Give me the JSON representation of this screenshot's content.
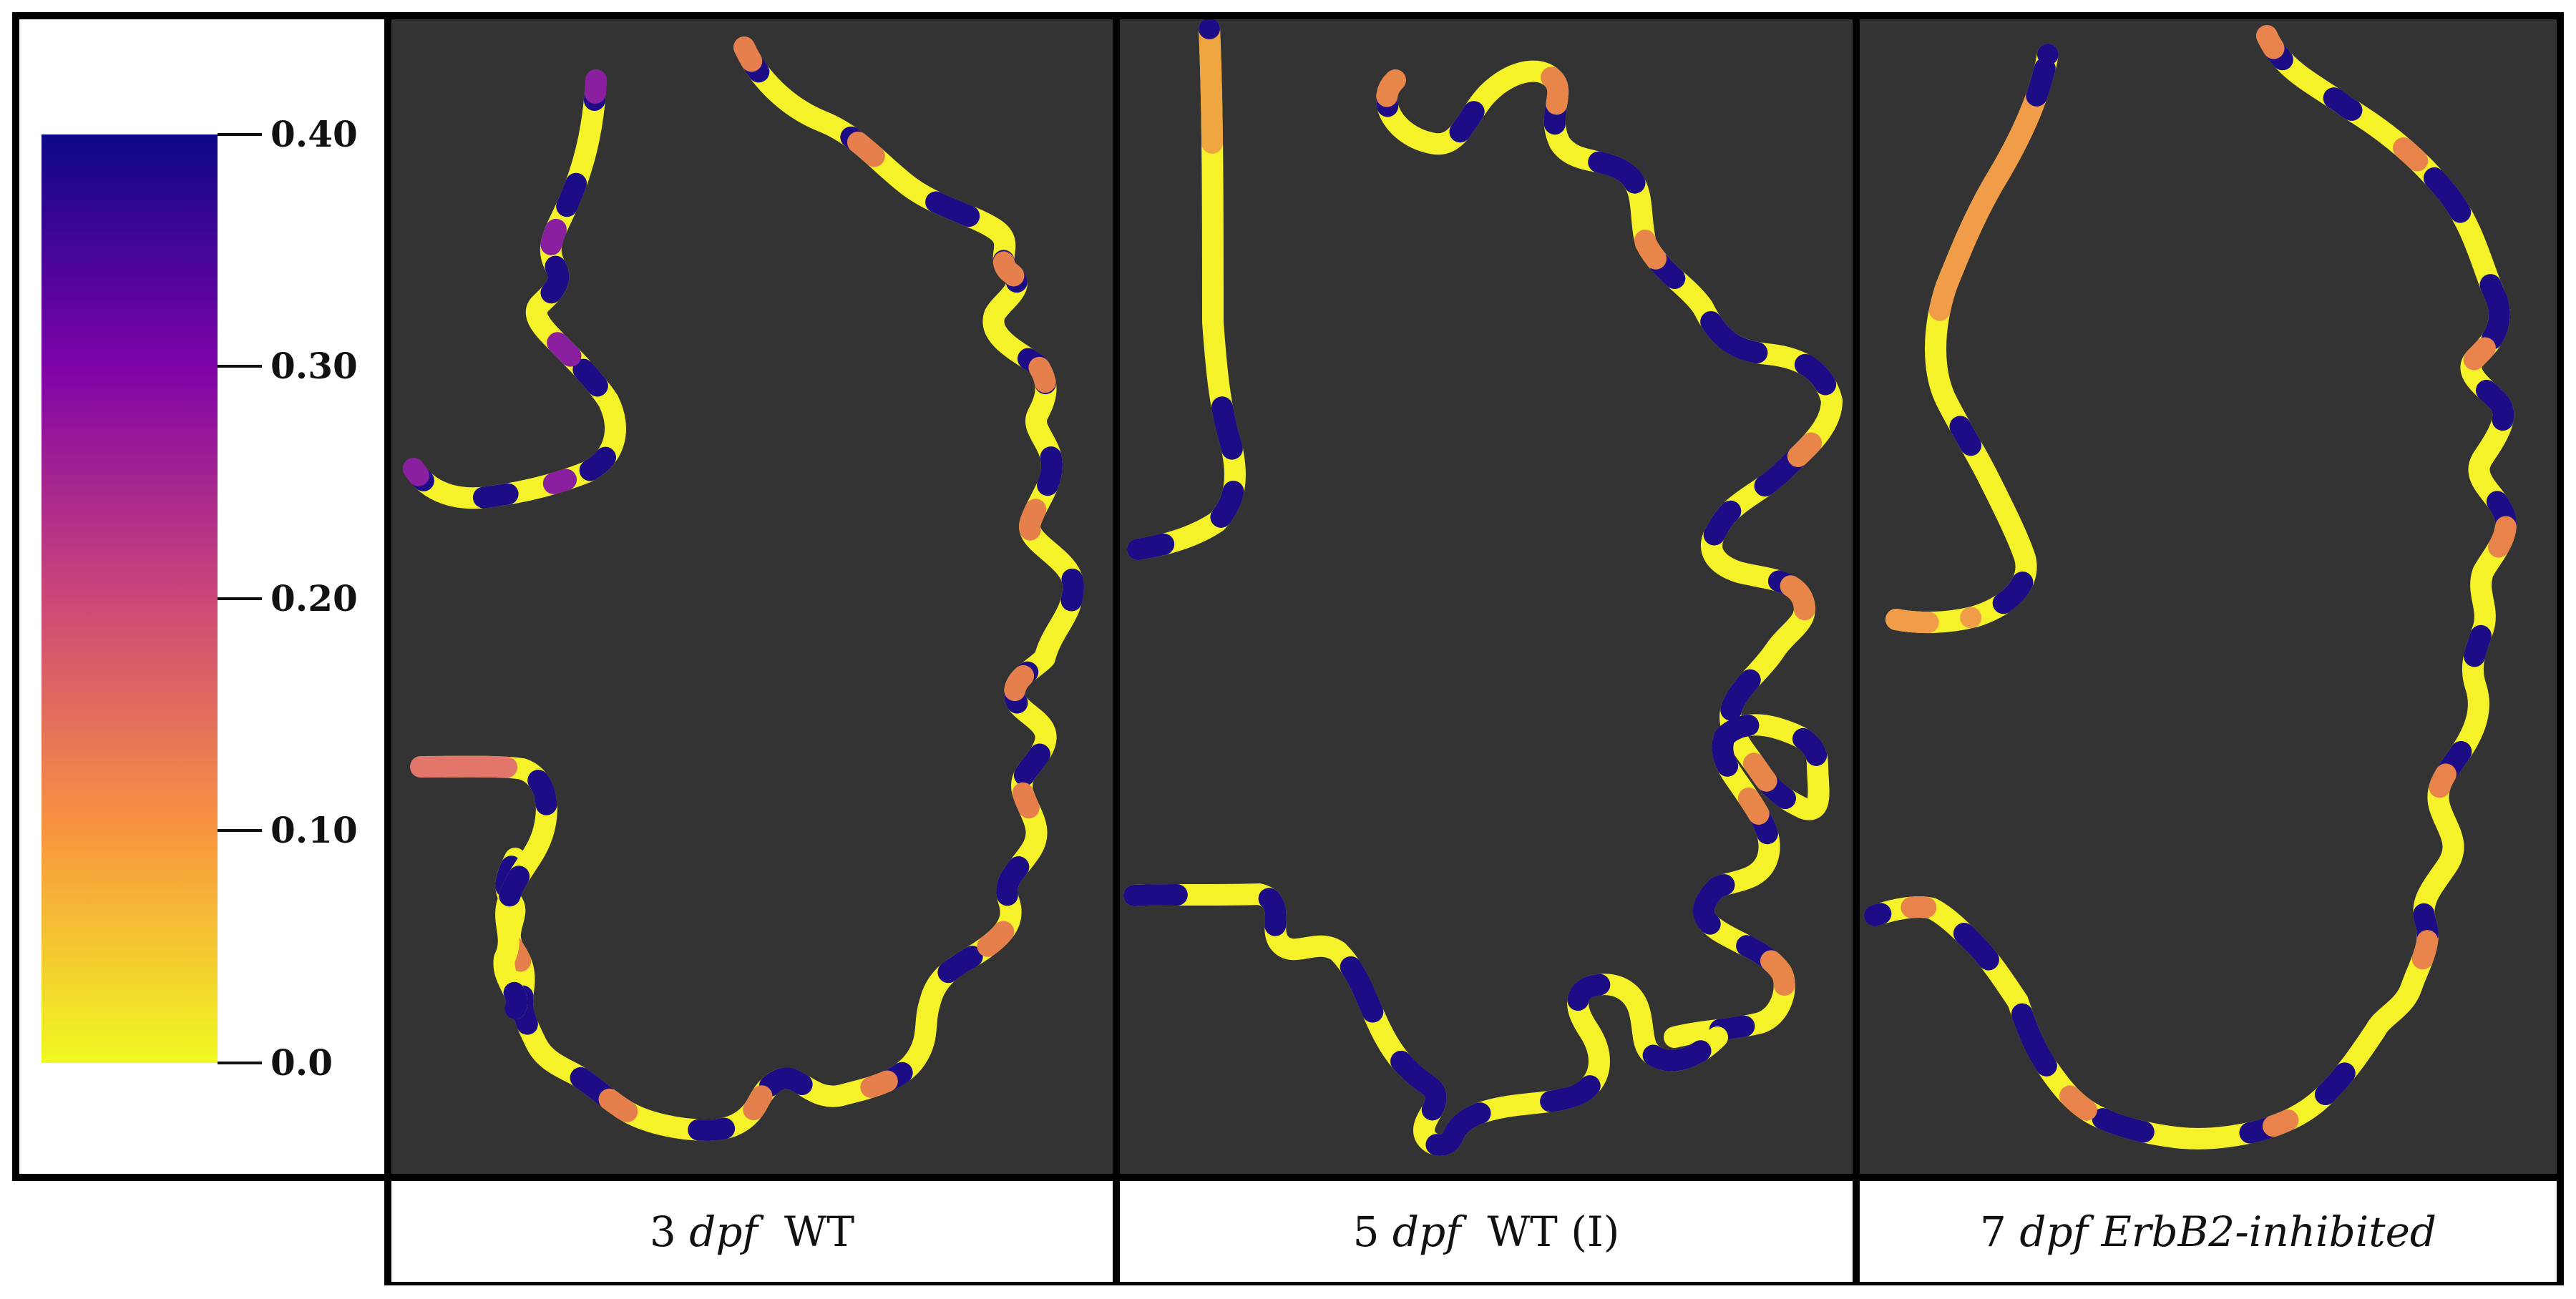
{
  "colorbar": {
    "ticks": [
      "0.40",
      "0.30",
      "0.20",
      "0.10",
      "0.0"
    ],
    "tick_values": [
      0.4,
      0.3,
      0.2,
      0.1,
      0.0
    ],
    "range": [
      0.0,
      0.4
    ],
    "colormap": [
      "#f0f921",
      "#f89540",
      "#cc4778",
      "#7e03a8",
      "#0d0887"
    ]
  },
  "colors": {
    "panel_background": "#333333",
    "frame": "#000000",
    "high": "#1c0c86",
    "mid_high": "#7e03a8",
    "mid": "#cc4778",
    "mid_low": "#f89540",
    "low": "#f5f22a"
  },
  "panels": [
    {
      "caption_num": "3",
      "caption_italic": "dpf",
      "caption_rest": "WT"
    },
    {
      "caption_num": "5",
      "caption_italic": "dpf",
      "caption_rest": "WT (I)"
    },
    {
      "caption_num": "7",
      "caption_italic": "dpf ErbB2-inhibited",
      "caption_rest": ""
    }
  ]
}
